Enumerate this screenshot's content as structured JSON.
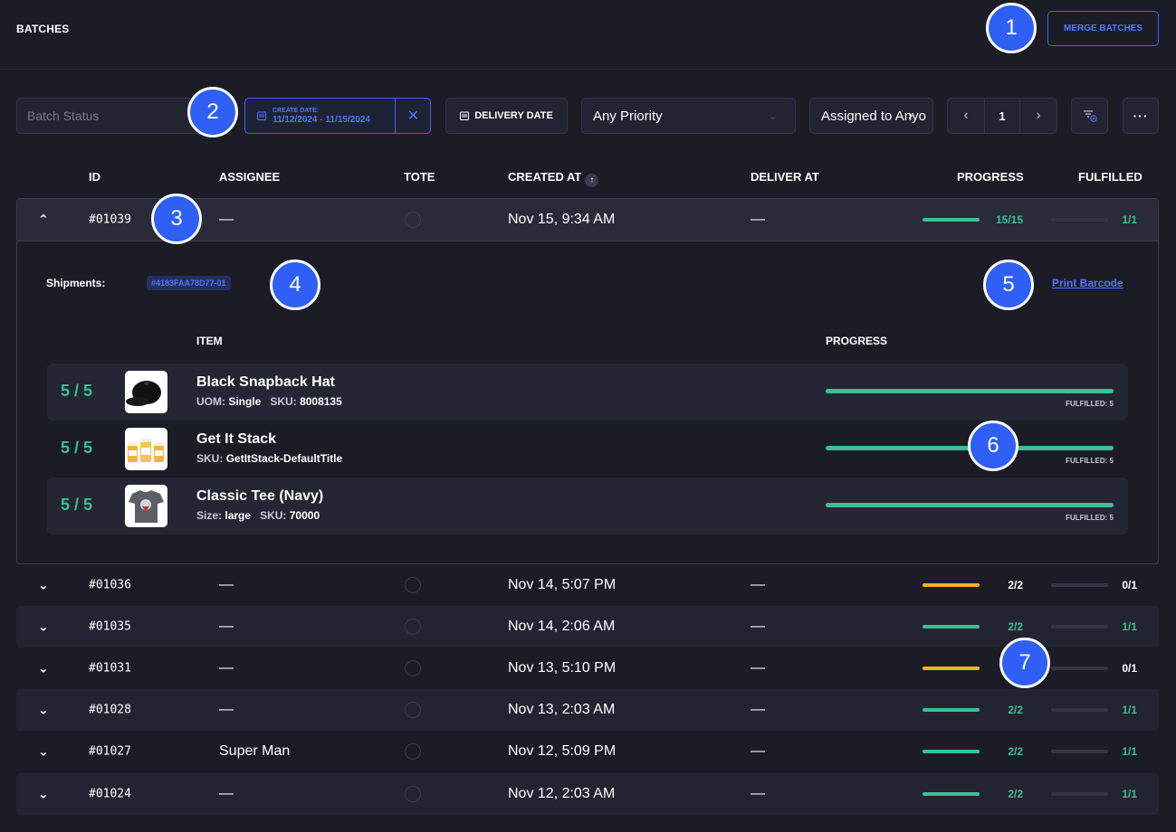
{
  "header": {
    "title": "BATCHES",
    "merge_label": "MERGE BATCHES"
  },
  "filters": {
    "batch_status_placeholder": "Batch Status",
    "create_date_label": "CREATE DATE:",
    "create_date_value": "11/12/2024 - 11/15/2024",
    "delivery_date_label": "DELIVERY DATE",
    "priority_value": "Any Priority",
    "assigned_value": "Assigned to Anyo",
    "page": "1"
  },
  "columns": {
    "id": "ID",
    "assignee": "ASSIGNEE",
    "tote": "TOTE",
    "created_at": "CREATED AT",
    "deliver_at": "DELIVER AT",
    "progress": "PROGRESS",
    "fulfilled": "FULFILLED"
  },
  "expanded": {
    "id": "#01039",
    "assignee": "—",
    "created_at": "Nov 15, 9:34 AM",
    "deliver_at": "—",
    "progress": "15/15",
    "progress_fraction": 1.0,
    "fulfilled": "1/1",
    "fulfilled_fraction": 1.0,
    "shipments_label": "Shipments:",
    "shipment_tag": "#4183FAA78D77-01",
    "print_barcode": "Print Barcode",
    "item_header": "ITEM",
    "progress_header": "PROGRESS",
    "items": [
      {
        "qty": "5 / 5",
        "name": "Black Snapback Hat",
        "meta1_key": "UOM:",
        "meta1_val": "Single",
        "meta2_key": "SKU:",
        "meta2_val": "8008135",
        "fulfilled": "FULFILLED: 5",
        "progress_fraction": 1.0
      },
      {
        "qty": "5 / 5",
        "name": "Get It Stack",
        "meta1_key": "SKU:",
        "meta1_val": "GetItStack-DefaultTitle",
        "meta2_key": "",
        "meta2_val": "",
        "fulfilled": "FULFILLED: 5",
        "progress_fraction": 1.0
      },
      {
        "qty": "5 / 5",
        "name": "Classic Tee (Navy)",
        "meta1_key": "Size:",
        "meta1_val": "large",
        "meta2_key": "SKU:",
        "meta2_val": "70000",
        "fulfilled": "FULFILLED: 5",
        "progress_fraction": 1.0
      }
    ]
  },
  "rows": [
    {
      "id": "#01036",
      "assignee": "—",
      "created_at": "Nov 14, 5:07 PM",
      "deliver_at": "—",
      "progress": "2/2",
      "progress_fraction": 1.0,
      "progress_color": "#f4b21c",
      "fulfilled": "0/1",
      "fulfilled_fraction": 0.0
    },
    {
      "id": "#01035",
      "assignee": "—",
      "created_at": "Nov 14, 2:06 AM",
      "deliver_at": "—",
      "progress": "2/2",
      "progress_fraction": 1.0,
      "progress_color": "#3bbf93",
      "fulfilled": "1/1",
      "fulfilled_fraction": 1.0
    },
    {
      "id": "#01031",
      "assignee": "—",
      "created_at": "Nov 13, 5:10 PM",
      "deliver_at": "—",
      "progress": "2/2",
      "progress_fraction": 1.0,
      "progress_color": "#f4b21c",
      "fulfilled": "0/1",
      "fulfilled_fraction": 0.0
    },
    {
      "id": "#01028",
      "assignee": "—",
      "created_at": "Nov 13, 2:03 AM",
      "deliver_at": "—",
      "progress": "2/2",
      "progress_fraction": 1.0,
      "progress_color": "#3bbf93",
      "fulfilled": "1/1",
      "fulfilled_fraction": 1.0
    },
    {
      "id": "#01027",
      "assignee": "Super Man",
      "created_at": "Nov 12, 5:09 PM",
      "deliver_at": "—",
      "progress": "2/2",
      "progress_fraction": 1.0,
      "progress_color": "#3bbf93",
      "fulfilled": "1/1",
      "fulfilled_fraction": 1.0
    },
    {
      "id": "#01024",
      "assignee": "—",
      "created_at": "Nov 12, 2:03 AM",
      "deliver_at": "—",
      "progress": "2/2",
      "progress_fraction": 1.0,
      "progress_color": "#3bbf93",
      "fulfilled": "1/1",
      "fulfilled_fraction": 1.0
    }
  ],
  "annotations": [
    "1",
    "2",
    "3",
    "4",
    "5",
    "6",
    "7"
  ],
  "colors": {
    "accent": "#3b62f5",
    "success": "#3bbf93",
    "warning": "#f4b21c",
    "background": "#1c1c27"
  }
}
